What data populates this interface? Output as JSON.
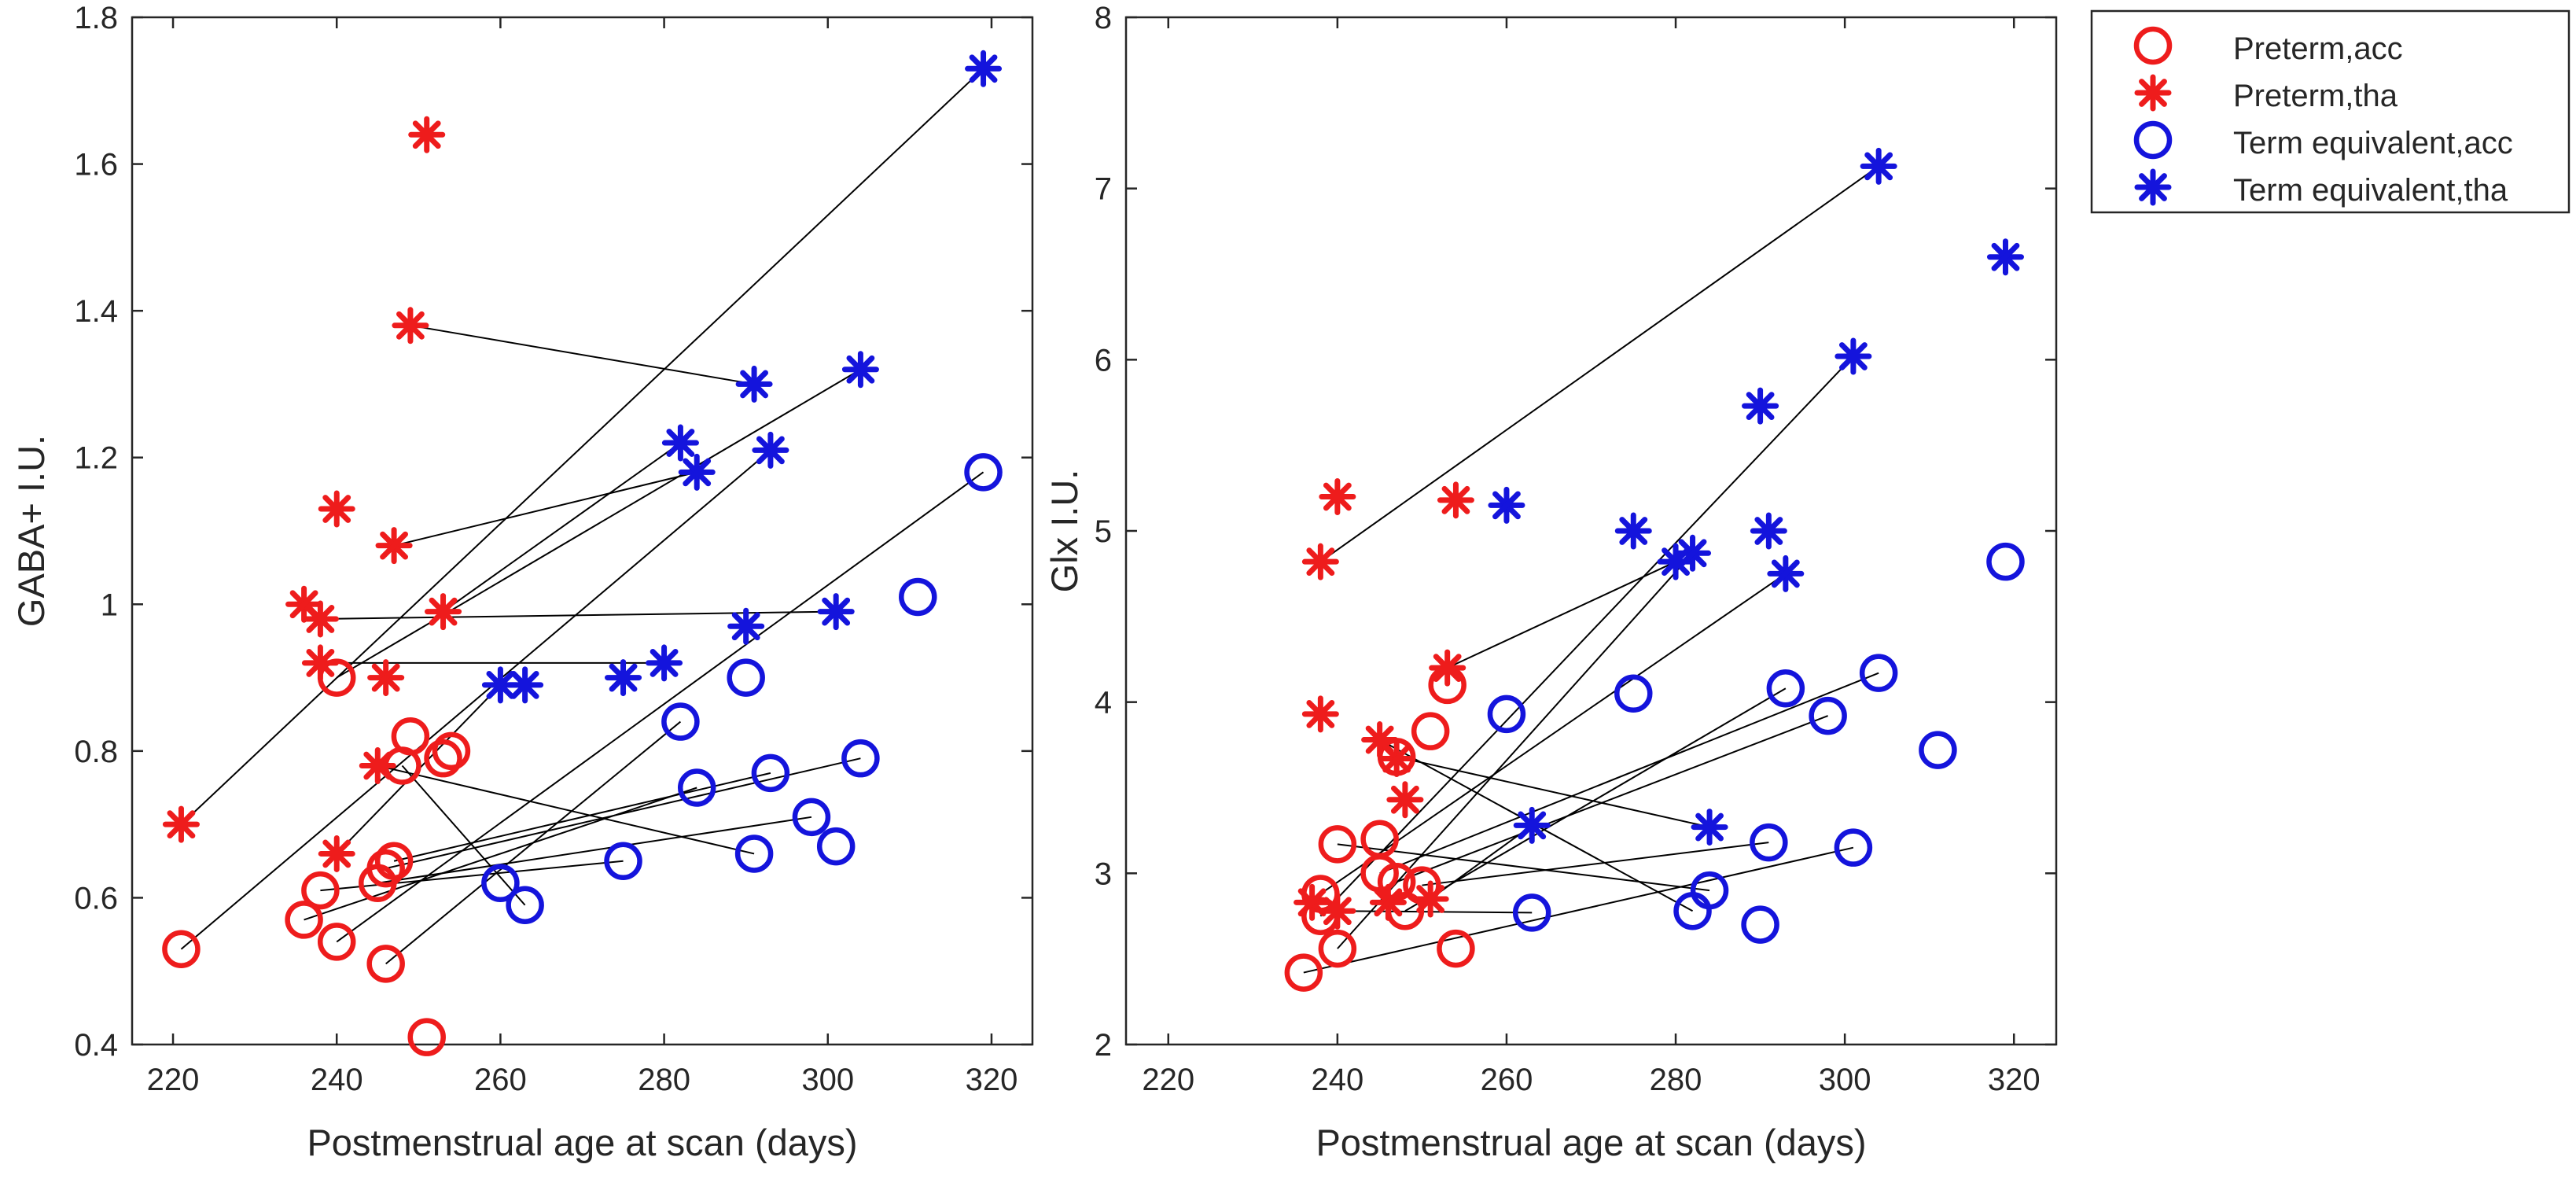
{
  "colors": {
    "preterm": "#ee1c1c",
    "term": "#1414dc",
    "connector": "#000000",
    "axis": "#262626"
  },
  "legend": {
    "entries": [
      {
        "label": "Preterm,acc",
        "marker": "circle",
        "group": "preterm"
      },
      {
        "label": "Preterm,tha",
        "marker": "star",
        "group": "preterm"
      },
      {
        "label": "Term equivalent,acc",
        "marker": "circle",
        "group": "term"
      },
      {
        "label": "Term equivalent,tha",
        "marker": "star",
        "group": "term"
      }
    ]
  },
  "chart_data": [
    {
      "type": "scatter",
      "title": "",
      "xlabel": "Postmenstrual age at scan (days)",
      "ylabel": "GABA+ I.U.",
      "xlim": [
        215,
        325
      ],
      "ylim": [
        0.4,
        1.8
      ],
      "xticks": [
        220,
        240,
        260,
        280,
        300,
        320
      ],
      "yticks": [
        0.4,
        0.6,
        0.8,
        1,
        1.2,
        1.4,
        1.6,
        1.8
      ],
      "ytick_labels": [
        "0.4",
        "0.6",
        "0.8",
        "1",
        "1.2",
        "1.4",
        "1.6",
        "1.8"
      ],
      "series": [
        {
          "name": "Preterm,acc",
          "group": "preterm",
          "marker": "circle",
          "points": [
            [
              221,
              0.53
            ],
            [
              236,
              0.57
            ],
            [
              238,
              0.61
            ],
            [
              240,
              0.54
            ],
            [
              240,
              0.9
            ],
            [
              245,
              0.62
            ],
            [
              246,
              0.64
            ],
            [
              247,
              0.65
            ],
            [
              246,
              0.51
            ],
            [
              249,
              0.82
            ],
            [
              248,
              0.78
            ],
            [
              253,
              0.79
            ],
            [
              254,
              0.8
            ],
            [
              251,
              0.41
            ]
          ]
        },
        {
          "name": "Preterm,tha",
          "group": "preterm",
          "marker": "star",
          "points": [
            [
              221,
              0.7
            ],
            [
              236,
              1
            ],
            [
              238,
              0.98
            ],
            [
              238,
              0.92
            ],
            [
              240,
              1.13
            ],
            [
              240,
              0.66
            ],
            [
              245,
              0.78
            ],
            [
              246,
              0.9
            ],
            [
              247,
              1.08
            ],
            [
              249,
              1.38
            ],
            [
              251,
              1.64
            ],
            [
              253,
              0.99
            ]
          ]
        },
        {
          "name": "Term equivalent,acc",
          "group": "term",
          "marker": "circle",
          "points": [
            [
              260,
              0.62
            ],
            [
              263,
              0.59
            ],
            [
              275,
              0.65
            ],
            [
              282,
              0.84
            ],
            [
              284,
              0.75
            ],
            [
              290,
              0.9
            ],
            [
              291,
              0.66
            ],
            [
              293,
              0.77
            ],
            [
              298,
              0.71
            ],
            [
              301,
              0.67
            ],
            [
              304,
              0.79
            ],
            [
              311,
              1.01
            ],
            [
              319,
              1.18
            ]
          ]
        },
        {
          "name": "Term equivalent,tha",
          "group": "term",
          "marker": "star",
          "points": [
            [
              260,
              0.89
            ],
            [
              263,
              0.89
            ],
            [
              275,
              0.9
            ],
            [
              280,
              0.92
            ],
            [
              282,
              1.22
            ],
            [
              284,
              1.18
            ],
            [
              290,
              0.97
            ],
            [
              291,
              1.3
            ],
            [
              293,
              1.21
            ],
            [
              301,
              0.99
            ],
            [
              304,
              1.32
            ],
            [
              319,
              1.73
            ]
          ]
        }
      ],
      "connections": [
        [
          [
            221,
            0.7
          ],
          [
            319,
            1.73
          ]
        ],
        [
          [
            221,
            0.53
          ],
          [
            293,
            1.21
          ]
        ],
        [
          [
            238,
            0.98
          ],
          [
            301,
            0.99
          ]
        ],
        [
          [
            240,
            0.9
          ],
          [
            304,
            1.32
          ]
        ],
        [
          [
            249,
            1.38
          ],
          [
            291,
            1.3
          ]
        ],
        [
          [
            247,
            1.08
          ],
          [
            284,
            1.18
          ]
        ],
        [
          [
            253,
            0.99
          ],
          [
            282,
            1.22
          ]
        ],
        [
          [
            238,
            0.92
          ],
          [
            280,
            0.92
          ]
        ],
        [
          [
            240,
            0.66
          ],
          [
            260,
            0.89
          ]
        ],
        [
          [
            240,
            0.54
          ],
          [
            319,
            1.18
          ]
        ],
        [
          [
            246,
            0.64
          ],
          [
            304,
            0.79
          ]
        ],
        [
          [
            247,
            0.65
          ],
          [
            293,
            0.77
          ]
        ],
        [
          [
            245,
            0.62
          ],
          [
            298,
            0.71
          ]
        ],
        [
          [
            246,
            0.51
          ],
          [
            282,
            0.84
          ]
        ],
        [
          [
            236,
            0.57
          ],
          [
            284,
            0.75
          ]
        ],
        [
          [
            245,
            0.78
          ],
          [
            291,
            0.66
          ]
        ],
        [
          [
            238,
            0.61
          ],
          [
            275,
            0.65
          ]
        ],
        [
          [
            248,
            0.78
          ],
          [
            263,
            0.59
          ]
        ]
      ]
    },
    {
      "type": "scatter",
      "title": "",
      "xlabel": "Postmenstrual age at scan (days)",
      "ylabel": "Glx I.U.",
      "xlim": [
        215,
        325
      ],
      "ylim": [
        2,
        8
      ],
      "xticks": [
        220,
        240,
        260,
        280,
        300,
        320
      ],
      "yticks": [
        2,
        3,
        4,
        5,
        6,
        7,
        8
      ],
      "ytick_labels": [
        "2",
        "3",
        "4",
        "5",
        "6",
        "7",
        "8"
      ],
      "series": [
        {
          "name": "Preterm,acc",
          "group": "preterm",
          "marker": "circle",
          "points": [
            [
              236,
              2.42
            ],
            [
              238,
              2.75
            ],
            [
              238,
              2.88
            ],
            [
              240,
              2.56
            ],
            [
              240,
              3.17
            ],
            [
              245,
              3.0
            ],
            [
              245,
              3.2
            ],
            [
              247,
              2.95
            ],
            [
              247,
              3.68
            ],
            [
              248,
              2.78
            ],
            [
              250,
              2.93
            ],
            [
              251,
              3.83
            ],
            [
              253,
              4.1
            ],
            [
              254,
              2.56
            ]
          ]
        },
        {
          "name": "Preterm,tha",
          "group": "preterm",
          "marker": "star",
          "points": [
            [
              237,
              2.83
            ],
            [
              238,
              4.82
            ],
            [
              238,
              3.93
            ],
            [
              240,
              5.2
            ],
            [
              240,
              2.78
            ],
            [
              245,
              3.78
            ],
            [
              246,
              2.83
            ],
            [
              247,
              3.67
            ],
            [
              248,
              3.43
            ],
            [
              251,
              2.85
            ],
            [
              253,
              4.2
            ],
            [
              254,
              5.18
            ]
          ]
        },
        {
          "name": "Term equivalent,acc",
          "group": "term",
          "marker": "circle",
          "points": [
            [
              260,
              3.93
            ],
            [
              263,
              2.77
            ],
            [
              275,
              4.05
            ],
            [
              282,
              2.78
            ],
            [
              284,
              2.9
            ],
            [
              290,
              2.7
            ],
            [
              291,
              3.18
            ],
            [
              293,
              4.08
            ],
            [
              298,
              3.92
            ],
            [
              301,
              3.15
            ],
            [
              304,
              4.17
            ],
            [
              311,
              3.72
            ],
            [
              319,
              4.82
            ]
          ]
        },
        {
          "name": "Term equivalent,tha",
          "group": "term",
          "marker": "star",
          "points": [
            [
              260,
              5.15
            ],
            [
              263,
              3.28
            ],
            [
              275,
              5.0
            ],
            [
              280,
              4.82
            ],
            [
              282,
              4.87
            ],
            [
              284,
              3.27
            ],
            [
              290,
              5.73
            ],
            [
              291,
              5.0
            ],
            [
              293,
              4.75
            ],
            [
              301,
              6.02
            ],
            [
              304,
              7.13
            ],
            [
              319,
              6.6
            ]
          ]
        }
      ],
      "connections": [
        [
          [
            238,
            4.82
          ],
          [
            304,
            7.13
          ]
        ],
        [
          [
            238,
            2.75
          ],
          [
            301,
            6.02
          ]
        ],
        [
          [
            238,
            2.88
          ],
          [
            293,
            4.75
          ]
        ],
        [
          [
            240,
            2.56
          ],
          [
            282,
            4.87
          ]
        ],
        [
          [
            253,
            4.2
          ],
          [
            280,
            4.82
          ]
        ],
        [
          [
            247,
            3.68
          ],
          [
            284,
            3.27
          ]
        ],
        [
          [
            245,
            3.78
          ],
          [
            282,
            2.78
          ]
        ],
        [
          [
            236,
            2.42
          ],
          [
            301,
            3.15
          ]
        ],
        [
          [
            240,
            3.17
          ],
          [
            284,
            2.9
          ]
        ],
        [
          [
            245,
            3.0
          ],
          [
            304,
            4.17
          ]
        ],
        [
          [
            247,
            2.95
          ],
          [
            298,
            3.92
          ]
        ],
        [
          [
            248,
            2.78
          ],
          [
            293,
            4.08
          ]
        ],
        [
          [
            250,
            2.93
          ],
          [
            291,
            3.18
          ]
        ],
        [
          [
            251,
            2.85
          ],
          [
            263,
            3.28
          ]
        ],
        [
          [
            240,
            2.78
          ],
          [
            263,
            2.77
          ]
        ]
      ]
    }
  ]
}
